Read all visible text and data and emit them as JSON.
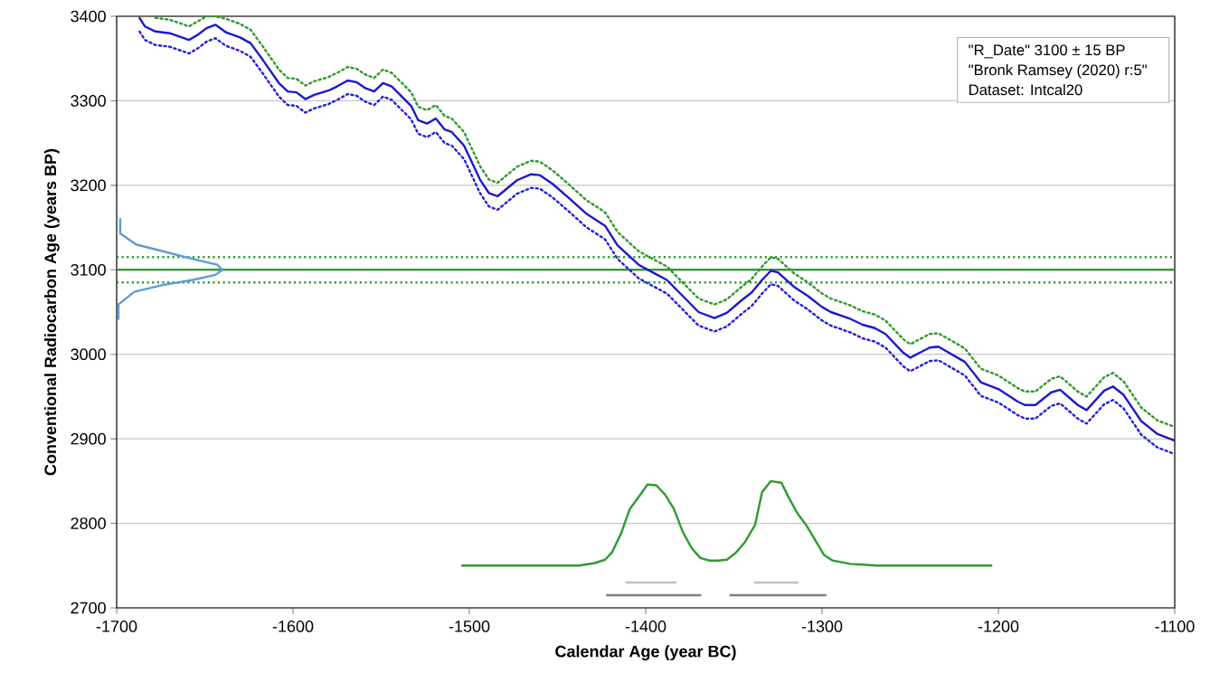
{
  "chart_data": {
    "type": "line",
    "xlabel": "Calendar Age (year BC)",
    "ylabel": "Conventional Radiocarbon Age (years BP)",
    "xlim": [
      -1700,
      -1100
    ],
    "ylim": [
      2700,
      3400
    ],
    "xticks": [
      -1700,
      -1600,
      -1500,
      -1400,
      -1300,
      -1200,
      -1100
    ],
    "yticks": [
      2700,
      2800,
      2900,
      3000,
      3100,
      3200,
      3300,
      3400
    ],
    "grid": "y",
    "annotations": [
      "\"R_Date\" 3100 ± 15 BP",
      "\"Bronk Ramsey (2020) r:5\"",
      "Dataset: Intcal20"
    ],
    "ref_lines": [
      {
        "axis": "y",
        "value": 3100,
        "color": "#2e9a2e"
      },
      {
        "axis": "y",
        "value": 3115,
        "color": "#2e9a2e",
        "line_style": "dotted"
      },
      {
        "axis": "y",
        "value": 3085,
        "color": "#2e9a2e",
        "line_style": "dotted"
      }
    ],
    "series": [
      {
        "color": "#2e9a2e",
        "line_style": "dotted",
        "x": [
          -1678,
          -1670,
          -1663,
          -1659,
          -1654,
          -1649,
          -1644,
          -1638,
          -1630,
          -1624,
          -1617,
          -1608,
          -1603,
          -1598,
          -1593,
          -1588,
          -1580,
          -1575,
          -1569,
          -1564,
          -1559,
          -1554,
          -1549,
          -1544,
          -1533,
          -1529,
          -1524,
          -1519,
          -1514,
          -1510,
          -1503,
          -1494,
          -1489,
          -1484,
          -1473,
          -1465,
          -1460,
          -1453,
          -1443,
          -1434,
          -1423,
          -1416,
          -1404,
          -1397,
          -1388,
          -1370,
          -1361,
          -1354,
          -1345,
          -1340,
          -1334,
          -1329,
          -1325,
          -1316,
          -1308,
          -1300,
          -1295,
          -1284,
          -1277,
          -1270,
          -1264,
          -1254,
          -1250,
          -1239,
          -1234,
          -1219,
          -1210,
          -1200,
          -1189,
          -1185,
          -1179,
          -1170,
          -1165,
          -1155,
          -1150,
          -1140,
          -1135,
          -1129,
          -1119,
          -1110,
          -1100
        ],
        "values": [
          3398,
          3396,
          3391,
          3388,
          3394,
          3400,
          3400,
          3397,
          3391,
          3384,
          3364,
          3337,
          3327,
          3326,
          3318,
          3323,
          3328,
          3333,
          3340,
          3338,
          3331,
          3327,
          3337,
          3333,
          3310,
          3293,
          3289,
          3295,
          3282,
          3279,
          3263,
          3223,
          3207,
          3203,
          3222,
          3229,
          3228,
          3218,
          3200,
          3183,
          3168,
          3145,
          3122,
          3114,
          3104,
          3066,
          3059,
          3065,
          3081,
          3089,
          3104,
          3115,
          3113,
          3096,
          3085,
          3072,
          3066,
          3058,
          3051,
          3047,
          3040,
          3018,
          3012,
          3024,
          3025,
          3007,
          2983,
          2975,
          2960,
          2956,
          2956,
          2971,
          2974,
          2956,
          2950,
          2973,
          2978,
          2968,
          2937,
          2922,
          2914
        ]
      },
      {
        "color": "#2020e0",
        "line_style": "dotted",
        "x": [
          -1687,
          -1684,
          -1678,
          -1670,
          -1663,
          -1659,
          -1654,
          -1649,
          -1644,
          -1638,
          -1630,
          -1624,
          -1617,
          -1608,
          -1603,
          -1598,
          -1593,
          -1588,
          -1580,
          -1575,
          -1569,
          -1564,
          -1559,
          -1554,
          -1549,
          -1544,
          -1533,
          -1529,
          -1524,
          -1519,
          -1514,
          -1510,
          -1503,
          -1494,
          -1489,
          -1484,
          -1473,
          -1465,
          -1460,
          -1453,
          -1443,
          -1434,
          -1423,
          -1416,
          -1404,
          -1397,
          -1388,
          -1370,
          -1361,
          -1354,
          -1345,
          -1340,
          -1334,
          -1329,
          -1325,
          -1316,
          -1308,
          -1300,
          -1295,
          -1284,
          -1277,
          -1270,
          -1264,
          -1254,
          -1250,
          -1239,
          -1234,
          -1219,
          -1210,
          -1200,
          -1189,
          -1185,
          -1179,
          -1170,
          -1165,
          -1155,
          -1150,
          -1140,
          -1135,
          -1129,
          -1119,
          -1110,
          -1100
        ],
        "values": [
          3382,
          3372,
          3366,
          3364,
          3359,
          3356,
          3362,
          3370,
          3374,
          3365,
          3359,
          3352,
          3332,
          3305,
          3295,
          3294,
          3286,
          3291,
          3296,
          3301,
          3308,
          3306,
          3299,
          3295,
          3305,
          3301,
          3278,
          3261,
          3257,
          3263,
          3250,
          3247,
          3231,
          3191,
          3175,
          3171,
          3190,
          3197,
          3196,
          3186,
          3168,
          3151,
          3136,
          3113,
          3090,
          3082,
          3072,
          3034,
          3027,
          3033,
          3049,
          3057,
          3072,
          3083,
          3081,
          3064,
          3053,
          3040,
          3034,
          3026,
          3019,
          3015,
          3008,
          2986,
          2980,
          2992,
          2993,
          2975,
          2951,
          2943,
          2928,
          2924,
          2924,
          2939,
          2942,
          2924,
          2918,
          2941,
          2946,
          2936,
          2905,
          2890,
          2882
        ]
      },
      {
        "color": "#1a1ad0",
        "x": [
          -1687,
          -1684,
          -1678,
          -1670,
          -1663,
          -1659,
          -1654,
          -1649,
          -1644,
          -1638,
          -1630,
          -1624,
          -1617,
          -1608,
          -1603,
          -1598,
          -1593,
          -1588,
          -1580,
          -1575,
          -1569,
          -1564,
          -1559,
          -1554,
          -1549,
          -1544,
          -1533,
          -1529,
          -1524,
          -1519,
          -1514,
          -1510,
          -1503,
          -1494,
          -1489,
          -1484,
          -1473,
          -1465,
          -1460,
          -1453,
          -1443,
          -1434,
          -1423,
          -1416,
          -1404,
          -1397,
          -1388,
          -1370,
          -1361,
          -1354,
          -1345,
          -1340,
          -1334,
          -1329,
          -1325,
          -1316,
          -1308,
          -1300,
          -1295,
          -1284,
          -1277,
          -1270,
          -1264,
          -1254,
          -1250,
          -1239,
          -1234,
          -1219,
          -1210,
          -1200,
          -1189,
          -1185,
          -1179,
          -1170,
          -1165,
          -1155,
          -1150,
          -1140,
          -1135,
          -1129,
          -1119,
          -1110,
          -1100
        ],
        "values": [
          3398,
          3388,
          3382,
          3380,
          3375,
          3372,
          3378,
          3386,
          3390,
          3381,
          3375,
          3368,
          3348,
          3321,
          3311,
          3310,
          3302,
          3307,
          3312,
          3317,
          3324,
          3322,
          3315,
          3311,
          3321,
          3317,
          3294,
          3277,
          3273,
          3279,
          3266,
          3263,
          3247,
          3207,
          3191,
          3187,
          3206,
          3213,
          3212,
          3202,
          3184,
          3167,
          3152,
          3129,
          3106,
          3098,
          3088,
          3050,
          3043,
          3049,
          3065,
          3073,
          3088,
          3099,
          3097,
          3080,
          3069,
          3056,
          3050,
          3042,
          3035,
          3031,
          3024,
          3002,
          2996,
          3008,
          3009,
          2991,
          2967,
          2959,
          2944,
          2940,
          2940,
          2955,
          2958,
          2940,
          2934,
          2957,
          2962,
          2952,
          2921,
          2906,
          2898
        ]
      },
      {
        "color": "#5b9bd5",
        "x": [
          -1698,
          -1698,
          -1689,
          -1672,
          -1655,
          -1643,
          -1640,
          -1644,
          -1657,
          -1674,
          -1690,
          -1699,
          -1699
        ],
        "values": [
          3160,
          3143,
          3130,
          3121,
          3112,
          3106,
          3100,
          3094,
          3088,
          3082,
          3074,
          3059,
          3042
        ]
      },
      {
        "color": "#2e9a2e",
        "x": [
          -1504,
          -1438,
          -1429,
          -1423,
          -1419,
          -1414,
          -1409,
          -1403,
          -1399,
          -1394,
          -1389,
          -1384,
          -1379,
          -1374,
          -1369,
          -1364,
          -1359,
          -1354,
          -1349,
          -1344,
          -1338,
          -1334,
          -1329,
          -1323,
          -1319,
          -1314,
          -1309,
          -1299,
          -1294,
          -1284,
          -1269,
          -1204
        ],
        "values": [
          2750,
          2750,
          2753,
          2757,
          2766,
          2788,
          2817,
          2834,
          2846,
          2845,
          2834,
          2817,
          2790,
          2771,
          2759,
          2756,
          2756,
          2757,
          2765,
          2777,
          2798,
          2837,
          2850,
          2848,
          2831,
          2812,
          2798,
          2763,
          2756,
          2752,
          2750,
          2750
        ]
      },
      {
        "color": "#c0c0c0",
        "x": [
          -1411,
          -1383,
          -1360,
          -1338,
          -1314
        ],
        "values": [
          2730,
          2730,
          null,
          2730,
          2730
        ]
      },
      {
        "color": "#808080",
        "x": [
          -1422,
          -1369,
          -1360,
          -1352,
          -1298
        ],
        "values": [
          2715,
          2715,
          null,
          2715,
          2715
        ]
      }
    ]
  }
}
